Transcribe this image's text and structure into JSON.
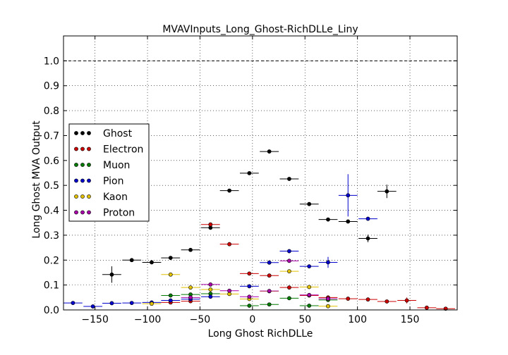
{
  "chart_data": {
    "type": "scatter",
    "title": "MVAVInputs_Long_Ghost-RichDLLe_Liny",
    "xlabel": "Long Ghost RichDLLe",
    "ylabel": "Long Ghost MVA Output",
    "xlim": [
      -180,
      195
    ],
    "ylim": [
      0,
      1.1
    ],
    "x_ticks": [
      -150,
      -100,
      -50,
      0,
      50,
      100,
      150
    ],
    "y_ticks": [
      0.0,
      0.1,
      0.2,
      0.3,
      0.4,
      0.5,
      0.6,
      0.7,
      0.8,
      0.9,
      1.0
    ],
    "grid": true,
    "reference_line": 1.0,
    "legend_position": "center-left",
    "series": [
      {
        "name": "Ghost",
        "color": "#000000",
        "points": [
          {
            "x": -134,
            "y": 0.142,
            "xerr": 9,
            "yerr": 0.033
          },
          {
            "x": -115,
            "y": 0.2,
            "xerr": 9,
            "yerr": 0.006
          },
          {
            "x": -96,
            "y": 0.191,
            "xerr": 9,
            "yerr": 0.005
          },
          {
            "x": -78,
            "y": 0.209,
            "xerr": 9,
            "yerr": 0.005
          },
          {
            "x": -59,
            "y": 0.241,
            "xerr": 9,
            "yerr": 0.005
          },
          {
            "x": -40,
            "y": 0.33,
            "xerr": 9,
            "yerr": 0.005
          },
          {
            "x": -22,
            "y": 0.479,
            "xerr": 9,
            "yerr": 0.005
          },
          {
            "x": -3,
            "y": 0.549,
            "xerr": 9,
            "yerr": 0.005
          },
          {
            "x": 16,
            "y": 0.636,
            "xerr": 9,
            "yerr": 0.005
          },
          {
            "x": 35,
            "y": 0.526,
            "xerr": 9,
            "yerr": 0.005
          },
          {
            "x": 54,
            "y": 0.425,
            "xerr": 9,
            "yerr": 0.005
          },
          {
            "x": 72,
            "y": 0.363,
            "xerr": 9,
            "yerr": 0.005
          },
          {
            "x": 91,
            "y": 0.355,
            "xerr": 9,
            "yerr": 0.005
          },
          {
            "x": 110,
            "y": 0.287,
            "xerr": 9,
            "yerr": 0.015
          },
          {
            "x": 128,
            "y": 0.476,
            "xerr": 9,
            "yerr": 0.027
          }
        ]
      },
      {
        "name": "Electron",
        "color": "#cc0000",
        "points": [
          {
            "x": -78,
            "y": 0.03,
            "xerr": 9,
            "yerr": 0.003
          },
          {
            "x": -59,
            "y": 0.035,
            "xerr": 9,
            "yerr": 0.003
          },
          {
            "x": -40,
            "y": 0.343,
            "xerr": 9,
            "yerr": 0.005
          },
          {
            "x": -22,
            "y": 0.264,
            "xerr": 9,
            "yerr": 0.008
          },
          {
            "x": -3,
            "y": 0.146,
            "xerr": 9,
            "yerr": 0.004
          },
          {
            "x": 16,
            "y": 0.138,
            "xerr": 9,
            "yerr": 0.004
          },
          {
            "x": 35,
            "y": 0.09,
            "xerr": 9,
            "yerr": 0.003
          },
          {
            "x": 54,
            "y": 0.058,
            "xerr": 9,
            "yerr": 0.003
          },
          {
            "x": 72,
            "y": 0.05,
            "xerr": 9,
            "yerr": 0.003
          },
          {
            "x": 91,
            "y": 0.045,
            "xerr": 9,
            "yerr": 0.003
          },
          {
            "x": 110,
            "y": 0.042,
            "xerr": 9,
            "yerr": 0.003
          },
          {
            "x": 128,
            "y": 0.034,
            "xerr": 9,
            "yerr": 0.003
          },
          {
            "x": 147,
            "y": 0.038,
            "xerr": 9,
            "yerr": 0.012
          },
          {
            "x": 166,
            "y": 0.009,
            "xerr": 9,
            "yerr": 0.002
          },
          {
            "x": 184,
            "y": 0.005,
            "xerr": 9,
            "yerr": 0.002
          }
        ]
      },
      {
        "name": "Muon",
        "color": "#007a00",
        "points": [
          {
            "x": -78,
            "y": 0.058,
            "xerr": 9,
            "yerr": 0.003
          },
          {
            "x": -59,
            "y": 0.062,
            "xerr": 9,
            "yerr": 0.003
          },
          {
            "x": -40,
            "y": 0.065,
            "xerr": 9,
            "yerr": 0.003
          },
          {
            "x": -3,
            "y": 0.017,
            "xerr": 9,
            "yerr": 0.002
          },
          {
            "x": 16,
            "y": 0.022,
            "xerr": 9,
            "yerr": 0.002
          },
          {
            "x": 35,
            "y": 0.047,
            "xerr": 9,
            "yerr": 0.003
          },
          {
            "x": 54,
            "y": 0.017,
            "xerr": 9,
            "yerr": 0.002
          },
          {
            "x": 72,
            "y": 0.04,
            "xerr": 9,
            "yerr": 0.003
          }
        ]
      },
      {
        "name": "Pion",
        "color": "#0000cc",
        "points": [
          {
            "x": -171,
            "y": 0.028,
            "xerr": 9,
            "yerr": 0.002
          },
          {
            "x": -152,
            "y": 0.014,
            "xerr": 9,
            "yerr": 0.002
          },
          {
            "x": -134,
            "y": 0.027,
            "xerr": 9,
            "yerr": 0.002
          },
          {
            "x": -115,
            "y": 0.028,
            "xerr": 9,
            "yerr": 0.002
          },
          {
            "x": -96,
            "y": 0.03,
            "xerr": 9,
            "yerr": 0.002
          },
          {
            "x": -78,
            "y": 0.038,
            "xerr": 9,
            "yerr": 0.002
          },
          {
            "x": -59,
            "y": 0.043,
            "xerr": 9,
            "yerr": 0.002
          },
          {
            "x": -40,
            "y": 0.053,
            "xerr": 9,
            "yerr": 0.002
          },
          {
            "x": -3,
            "y": 0.095,
            "xerr": 9,
            "yerr": 0.003
          },
          {
            "x": 16,
            "y": 0.19,
            "xerr": 9,
            "yerr": 0.004
          },
          {
            "x": 35,
            "y": 0.236,
            "xerr": 9,
            "yerr": 0.004
          },
          {
            "x": 54,
            "y": 0.175,
            "xerr": 9,
            "yerr": 0.004
          },
          {
            "x": 72,
            "y": 0.191,
            "xerr": 9,
            "yerr": 0.022
          },
          {
            "x": 91,
            "y": 0.46,
            "xerr": 9,
            "yerr": 0.085
          },
          {
            "x": 110,
            "y": 0.366,
            "xerr": 9,
            "yerr": 0.006
          }
        ]
      },
      {
        "name": "Kaon",
        "color": "#e0c000",
        "points": [
          {
            "x": -96,
            "y": 0.025,
            "xerr": 9,
            "yerr": 0.002
          },
          {
            "x": -78,
            "y": 0.142,
            "xerr": 9,
            "yerr": 0.004
          },
          {
            "x": -59,
            "y": 0.09,
            "xerr": 9,
            "yerr": 0.003
          },
          {
            "x": -40,
            "y": 0.082,
            "xerr": 9,
            "yerr": 0.003
          },
          {
            "x": -22,
            "y": 0.064,
            "xerr": 9,
            "yerr": 0.003
          },
          {
            "x": -3,
            "y": 0.044,
            "xerr": 9,
            "yerr": 0.003
          },
          {
            "x": 16,
            "y": 0.075,
            "xerr": 9,
            "yerr": 0.003
          },
          {
            "x": 35,
            "y": 0.155,
            "xerr": 9,
            "yerr": 0.004
          },
          {
            "x": 54,
            "y": 0.092,
            "xerr": 9,
            "yerr": 0.003
          },
          {
            "x": 72,
            "y": 0.015,
            "xerr": 9,
            "yerr": 0.002
          }
        ]
      },
      {
        "name": "Proton",
        "color": "#aa00aa",
        "points": [
          {
            "x": -59,
            "y": 0.05,
            "xerr": 9,
            "yerr": 0.003
          },
          {
            "x": -40,
            "y": 0.102,
            "xerr": 9,
            "yerr": 0.003
          },
          {
            "x": -22,
            "y": 0.077,
            "xerr": 9,
            "yerr": 0.003
          },
          {
            "x": -3,
            "y": 0.053,
            "xerr": 9,
            "yerr": 0.003
          },
          {
            "x": 16,
            "y": 0.076,
            "xerr": 9,
            "yerr": 0.003
          },
          {
            "x": 35,
            "y": 0.197,
            "xerr": 9,
            "yerr": 0.004
          },
          {
            "x": 54,
            "y": 0.06,
            "xerr": 9,
            "yerr": 0.003
          },
          {
            "x": 72,
            "y": 0.045,
            "xerr": 9,
            "yerr": 0.003
          }
        ]
      }
    ]
  }
}
